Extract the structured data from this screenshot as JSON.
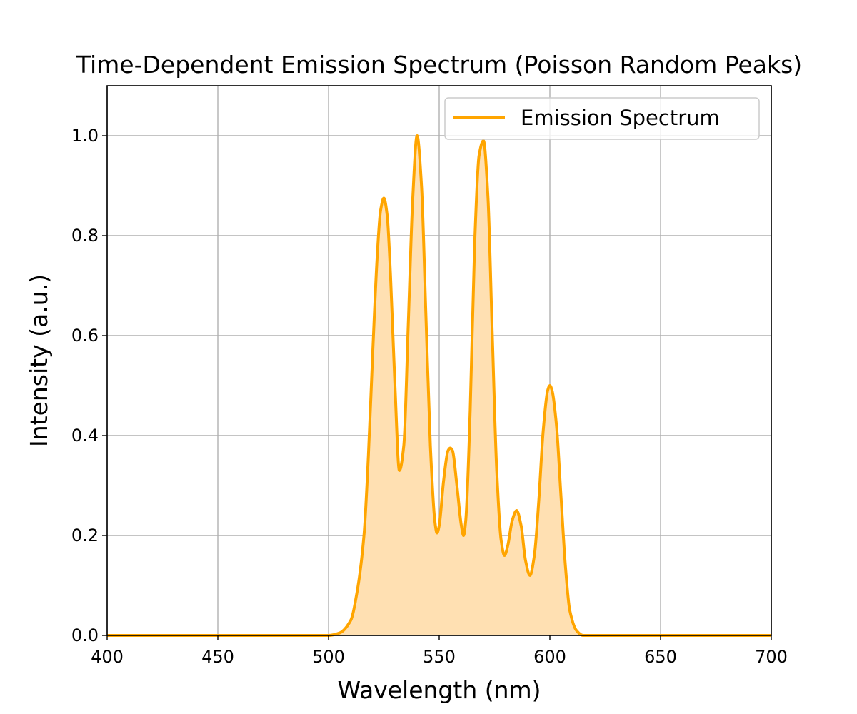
{
  "chart_data": {
    "type": "area",
    "title": "Time-Dependent Emission Spectrum (Poisson Random Peaks)",
    "xlabel": "Wavelength (nm)",
    "ylabel": "Intensity (a.u.)",
    "xlim": [
      400,
      700
    ],
    "ylim": [
      0,
      1.1
    ],
    "xticks": [
      400,
      450,
      500,
      550,
      600,
      650,
      700
    ],
    "xtick_labels": [
      "400",
      "450",
      "500",
      "550",
      "600",
      "650",
      "700"
    ],
    "yticks": [
      0.0,
      0.2,
      0.4,
      0.6,
      0.8,
      1.0
    ],
    "ytick_labels": [
      "0.0",
      "0.2",
      "0.4",
      "0.6",
      "0.8",
      "1.0"
    ],
    "grid": true,
    "legend": {
      "position": "upper right",
      "entries": [
        "Emission Spectrum"
      ]
    },
    "series": [
      {
        "name": "Emission Spectrum",
        "color": "#FFA500",
        "fill_color": "#FFE0B2",
        "x": [
          400,
          500,
          505,
          510,
          513,
          516,
          518,
          520,
          522,
          523.5,
          525,
          526.5,
          528,
          530,
          532,
          534,
          536,
          538,
          540,
          542,
          544,
          546,
          548,
          549,
          550,
          552,
          554,
          555,
          556,
          558,
          560,
          561,
          562,
          564,
          566,
          568,
          570,
          572,
          574,
          576,
          578,
          579.5,
          581,
          583,
          585,
          587,
          589,
          591,
          593,
          595,
          597,
          599,
          600,
          601,
          603,
          605,
          607,
          609,
          612,
          615,
          620,
          700
        ],
        "y": [
          0.0,
          0.0,
          0.005,
          0.03,
          0.09,
          0.2,
          0.36,
          0.57,
          0.76,
          0.85,
          0.875,
          0.84,
          0.72,
          0.5,
          0.33,
          0.38,
          0.62,
          0.87,
          1.0,
          0.9,
          0.64,
          0.38,
          0.23,
          0.205,
          0.22,
          0.31,
          0.37,
          0.375,
          0.37,
          0.3,
          0.22,
          0.2,
          0.23,
          0.45,
          0.78,
          0.96,
          0.99,
          0.88,
          0.6,
          0.33,
          0.19,
          0.16,
          0.18,
          0.23,
          0.25,
          0.22,
          0.15,
          0.12,
          0.16,
          0.27,
          0.41,
          0.49,
          0.5,
          0.49,
          0.42,
          0.28,
          0.14,
          0.05,
          0.01,
          0.0,
          0.0,
          0.0
        ]
      }
    ]
  }
}
